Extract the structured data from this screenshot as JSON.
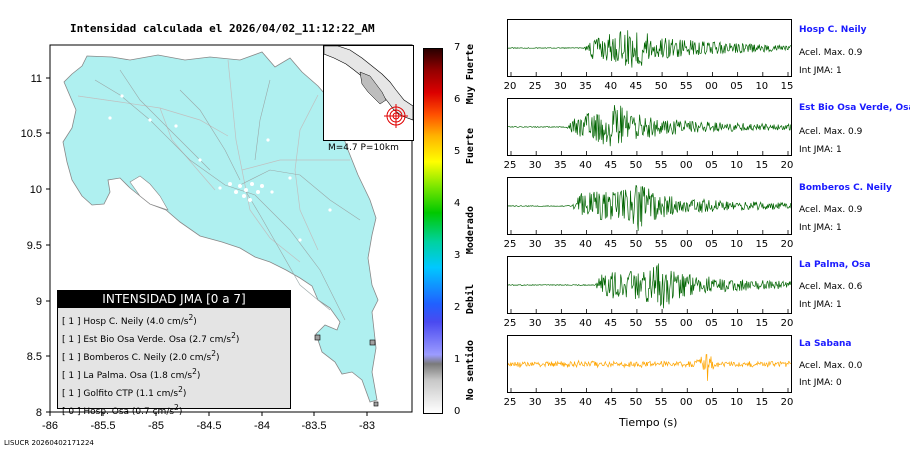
{
  "map": {
    "title": "Intensidad calculada el 2026/04/02_11:12:22_AM",
    "yticks": [
      "11",
      "10.5",
      "10",
      "9.5",
      "9",
      "8.5",
      "8"
    ],
    "xticks": [
      "-86",
      "-85.5",
      "-85",
      "-84.5",
      "-84",
      "-83.5",
      "-83"
    ],
    "inset_caption": "M=4.7 P=10km",
    "footer_code": "LISUCR 20260402171224"
  },
  "legend": {
    "title": "INTENSIDAD JMA [0 a 7]",
    "rows": [
      {
        "level": "[ 1 ]",
        "station": "Hosp C. Neily",
        "value": "(4.0 cm/s",
        "sup": "2",
        "close": ")"
      },
      {
        "level": "[ 1 ]",
        "station": "Est Bio Osa Verde. Osa",
        "value": "(2.7 cm/s",
        "sup": "2",
        "close": ")"
      },
      {
        "level": "[ 1 ]",
        "station": "Bomberos C. Neily",
        "value": "(2.0 cm/s",
        "sup": "2",
        "close": ")"
      },
      {
        "level": "[ 1 ]",
        "station": "La Palma. Osa",
        "value": "(1.8 cm/s",
        "sup": "2",
        "close": ")"
      },
      {
        "level": "[ 1 ]",
        "station": "Golfito CTP",
        "value": "(1.1 cm/s",
        "sup": "2",
        "close": ")"
      },
      {
        "level": "[ 0 ]",
        "station": "Hosp. Osa",
        "value": "(0.7 cm/s",
        "sup": "2",
        "close": ")"
      }
    ]
  },
  "colorbar": {
    "ticks": [
      "7",
      "6",
      "5",
      "4",
      "3",
      "2",
      "1",
      "0"
    ],
    "labels": {
      "muy_fuerte": "Muy Fuerte",
      "fuerte": "Fuerte",
      "moderado": "Moderado",
      "debil": "Debil",
      "no_sentido": "No sentido"
    }
  },
  "seismograms": {
    "xlabel": "Tiempo (s)",
    "panels": [
      {
        "name": "Hosp C. Neily",
        "acel": "Acel. Max. 0.9",
        "jma": "Int JMA: 1",
        "color": "#006400",
        "ticks": [
          "20",
          "25",
          "30",
          "35",
          "40",
          "45",
          "50",
          "55",
          "00",
          "05",
          "10",
          "15"
        ],
        "onset": 0.27,
        "peak": 0.46
      },
      {
        "name": "Est Bio Osa Verde, Osa",
        "acel": "Acel. Max. 0.9",
        "jma": "Int JMA: 1",
        "color": "#006400",
        "ticks": [
          "25",
          "30",
          "35",
          "40",
          "45",
          "50",
          "55",
          "00",
          "05",
          "10",
          "15",
          "20"
        ],
        "onset": 0.21,
        "peak": 0.39
      },
      {
        "name": "Bomberos C. Neily",
        "acel": "Acel. Max. 0.9",
        "jma": "Int JMA: 1",
        "color": "#006400",
        "ticks": [
          "25",
          "30",
          "35",
          "40",
          "45",
          "50",
          "55",
          "00",
          "05",
          "10",
          "15",
          "20"
        ],
        "onset": 0.23,
        "peak": 0.46
      },
      {
        "name": "La Palma, Osa",
        "acel": "Acel. Max. 0.6",
        "jma": "Int JMA: 1",
        "color": "#006400",
        "ticks": [
          "25",
          "30",
          "35",
          "40",
          "45",
          "50",
          "55",
          "00",
          "05",
          "10",
          "15",
          "20"
        ],
        "onset": 0.31,
        "peak": 0.55
      },
      {
        "name": "La Sabana",
        "acel": "Acel. Max. 0.0",
        "jma": "Int JMA: 0",
        "color": "#ffa500",
        "ticks": [
          "25",
          "30",
          "35",
          "40",
          "45",
          "50",
          "55",
          "00",
          "05",
          "10",
          "15",
          "20"
        ],
        "onset": 0.0,
        "peak": 0.7
      }
    ]
  }
}
